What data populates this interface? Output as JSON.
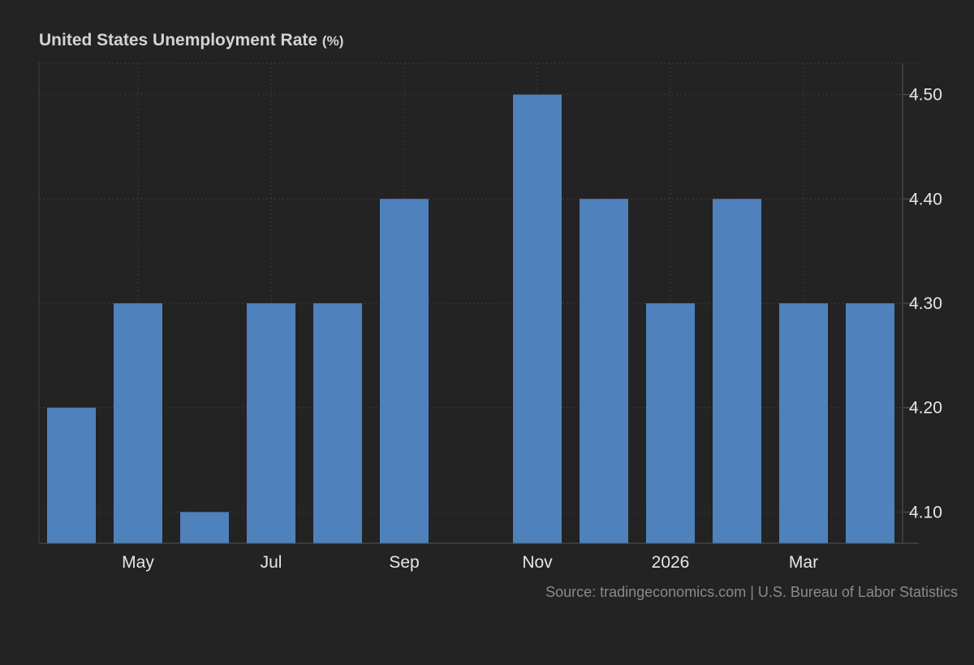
{
  "title": "United States Unemployment Rate",
  "unit": "(%)",
  "source": "Source: tradingeconomics.com | U.S. Bureau of Labor Statistics",
  "colors": {
    "background": "#232323",
    "bar": "#4f81bd",
    "grid": "#3c3c3c",
    "axis_text": "#e6e6e6"
  },
  "chart_data": {
    "type": "bar",
    "categories": [
      "2025-04",
      "2025-05",
      "2025-06",
      "2025-07",
      "2025-08",
      "2025-09",
      "2025-10",
      "2025-11",
      "2025-12",
      "2026-01",
      "2026-02",
      "2026-03",
      "2026-04"
    ],
    "values": [
      4.2,
      4.3,
      4.1,
      4.3,
      4.3,
      4.4,
      null,
      4.5,
      4.4,
      4.3,
      4.4,
      4.3,
      4.3
    ],
    "title": "United States Unemployment Rate (%)",
    "xlabel": "",
    "ylabel": "",
    "ylim": [
      4.07,
      4.53
    ],
    "yticks": [
      4.1,
      4.2,
      4.3,
      4.4,
      4.5
    ],
    "ytick_labels": [
      "4.10",
      "4.20",
      "4.30",
      "4.40",
      "4.50"
    ],
    "xtick_labels": [
      {
        "category": "2025-05",
        "label": "May"
      },
      {
        "category": "2025-07",
        "label": "Jul"
      },
      {
        "category": "2025-09",
        "label": "Sep"
      },
      {
        "category": "2025-11",
        "label": "Nov"
      },
      {
        "category": "2026-01",
        "label": "2026"
      },
      {
        "category": "2026-03",
        "label": "Mar"
      }
    ],
    "y_axis_position": "right",
    "grid": true
  }
}
